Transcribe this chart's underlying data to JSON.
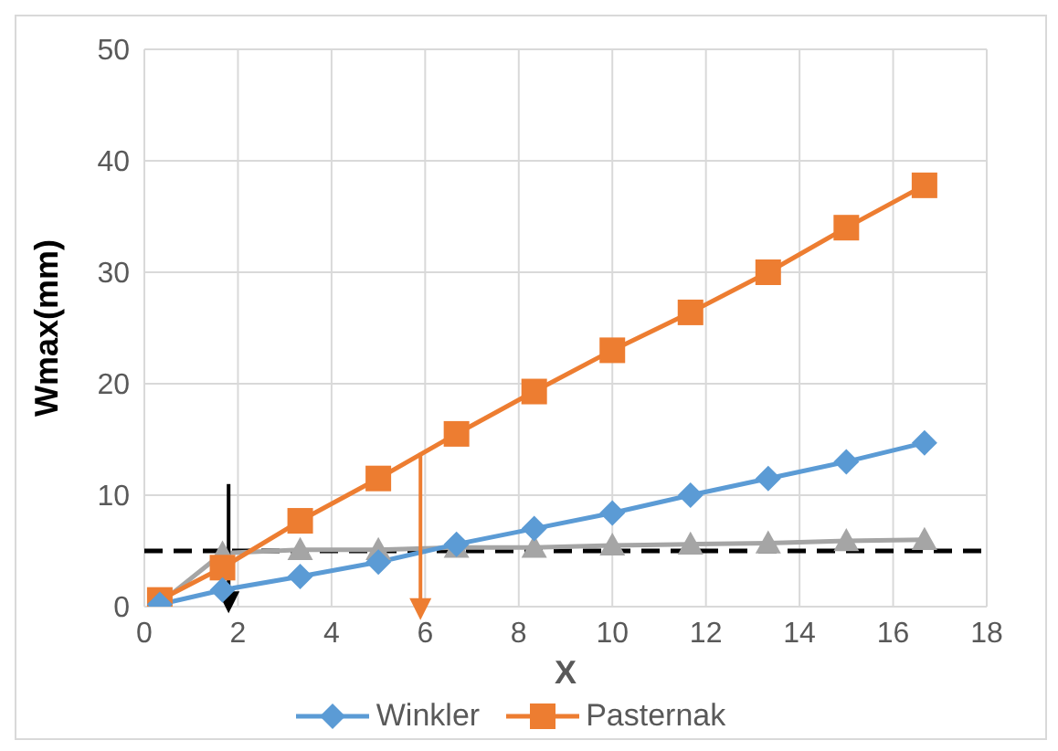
{
  "chart_data": {
    "type": "line",
    "xlabel": "X",
    "ylabel": "Wmax(mm)",
    "x": [
      0.33,
      1.67,
      3.33,
      5,
      6.67,
      8.33,
      10,
      11.67,
      13.33,
      15,
      16.67
    ],
    "xlim": [
      0,
      18
    ],
    "xticks": [
      0,
      2,
      4,
      6,
      8,
      10,
      12,
      14,
      16,
      18
    ],
    "ylim": [
      0,
      50
    ],
    "yticks": [
      0,
      10,
      20,
      30,
      40,
      50
    ],
    "grid": true,
    "legend": "bottom",
    "line_style": "solid",
    "series": [
      {
        "name": "Winkler",
        "color": "#5b9bd5",
        "marker": "diamond",
        "values": [
          0.2,
          1.5,
          2.7,
          4,
          5.6,
          7,
          8.4,
          10,
          11.5,
          13,
          14.7
        ]
      },
      {
        "name": "Pasternak",
        "color": "#ed7d31",
        "marker": "square",
        "values": [
          0.6,
          3.5,
          7.7,
          11.5,
          15.5,
          19.3,
          23,
          26.4,
          30,
          34,
          37.8
        ]
      },
      {
        "color": "#a5a5a5",
        "marker": "triangle",
        "values": [
          0.3,
          4.8,
          5.1,
          5.1,
          5.3,
          5.3,
          5.5,
          5.6,
          5.7,
          5.9,
          6.0
        ]
      }
    ],
    "ref_lines": [
      {
        "axis": "y",
        "value": 5,
        "color": "#000000",
        "line_style": "dashed"
      }
    ]
  }
}
